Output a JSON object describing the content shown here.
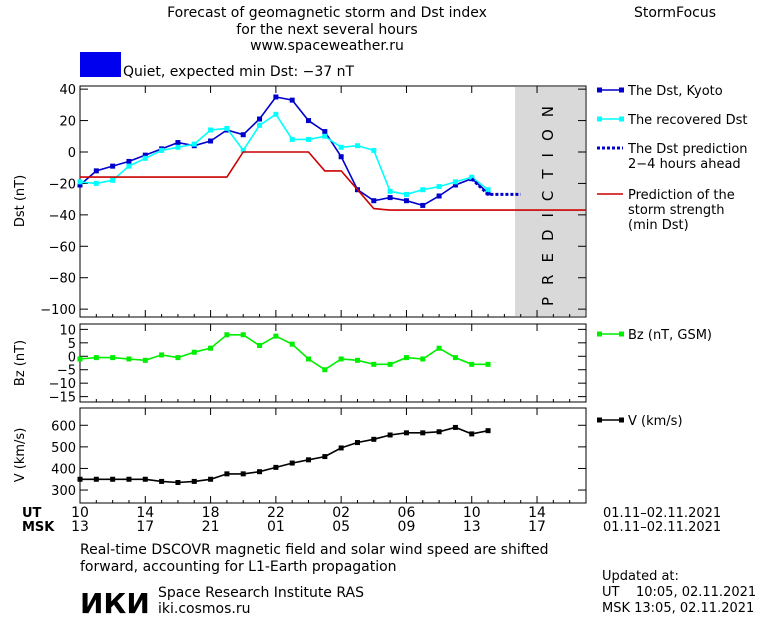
{
  "header": {
    "title_line1": "Forecast of geomagnetic storm and Dst index",
    "title_line2": "for the next several hours",
    "url": "www.spaceweather.ru",
    "brand": "StormFocus",
    "status_text": "Quiet, expected min Dst: −37 nT",
    "status_color": "#0000ee"
  },
  "labels": {
    "prediction": "PREDICTION",
    "ut": "UT",
    "msk": "MSK",
    "date_range_ut": "01.11–02.11.2021",
    "date_range_msk": "01.11–02.11.2021"
  },
  "footer": {
    "note_line1": "Real-time DSCOVR magnetic field and solar wind speed are shifted",
    "note_line2": "forward, accounting for L1-Earth propagation",
    "logo_text": "ИКИ",
    "institute": "Space Research Institute RAS",
    "site": "iki.cosmos.ru",
    "updated_title": "Updated at:",
    "updated_ut": "UT    10:05, 02.11.2021",
    "updated_msk": "MSK 13:05, 02.11.2021"
  },
  "chart_data": [
    {
      "type": "line",
      "panel": "dst",
      "ylabel": "Dst (nT)",
      "ylim": [
        -105,
        42
      ],
      "yticks": [
        40,
        20,
        0,
        -20,
        -40,
        -60,
        -80,
        -100
      ],
      "xlim": [
        10,
        41
      ],
      "prediction_region": [
        34.5,
        41
      ],
      "series": [
        {
          "name": "The Dst, Kyoto",
          "color": "#0000cc",
          "marker": "square",
          "style": "solid",
          "x": [
            10,
            11,
            12,
            13,
            14,
            15,
            16,
            17,
            18,
            19,
            20,
            21,
            22,
            23,
            24,
            25,
            26,
            27,
            28,
            29,
            30,
            31,
            32,
            33,
            34,
            35
          ],
          "y": [
            -21,
            -12,
            -9,
            -6,
            -2,
            2,
            6,
            4,
            7,
            14,
            11,
            21,
            35,
            33,
            20,
            13,
            -3,
            -24,
            -31,
            -29,
            -31,
            -34,
            -28,
            -21,
            -17,
            -26
          ]
        },
        {
          "name": "The recovered Dst",
          "color": "#00ffff",
          "marker": "square",
          "style": "solid",
          "x": [
            10,
            11,
            12,
            13,
            14,
            15,
            16,
            17,
            18,
            19,
            20,
            21,
            22,
            23,
            24,
            25,
            26,
            27,
            28,
            29,
            30,
            31,
            32,
            33,
            34,
            35
          ],
          "y": [
            -19,
            -20,
            -18,
            -9,
            -4,
            1,
            3,
            5,
            14,
            15,
            1,
            17,
            24,
            8,
            8,
            10,
            3,
            4,
            1,
            -25,
            -27,
            -24,
            -22,
            -19,
            -16,
            -24
          ]
        },
        {
          "name": "The Dst prediction 2–4 hours ahead",
          "color": "#0000cc",
          "style": "dotted",
          "x": [
            34,
            35,
            36,
            37
          ],
          "y": [
            -17,
            -27,
            -27,
            -27
          ]
        },
        {
          "name": "Prediction of the storm strength (min Dst)",
          "color": "#cc0000",
          "style": "solid",
          "x": [
            10,
            19,
            20,
            21,
            22,
            23,
            24,
            25,
            26,
            27,
            28,
            29,
            41
          ],
          "y": [
            -16,
            -16,
            0,
            0,
            0,
            0,
            0,
            -12,
            -12,
            -24,
            -36,
            -37,
            -37
          ]
        }
      ],
      "legend": [
        "The Dst, Kyoto",
        "The recovered Dst",
        "The Dst prediction",
        "2−4 hours ahead",
        "Prediction of the",
        "storm strength",
        "(min Dst)"
      ]
    },
    {
      "type": "line",
      "panel": "bz",
      "ylabel": "Bz (nT)",
      "ylim": [
        -17,
        12
      ],
      "yticks": [
        10,
        5,
        0,
        -5,
        -10,
        -15
      ],
      "series": [
        {
          "name": "Bz (nT, GSM)",
          "color": "#00ee00",
          "marker": "square",
          "x": [
            10,
            11,
            12,
            13,
            14,
            15,
            16,
            17,
            18,
            19,
            20,
            21,
            22,
            23,
            24,
            25,
            26,
            27,
            28,
            29,
            30,
            31,
            32,
            33,
            34,
            35
          ],
          "y": [
            -1,
            -0.5,
            -0.5,
            -1,
            -1.5,
            0.5,
            -0.5,
            1.5,
            3,
            8,
            8,
            4,
            7.5,
            4.5,
            -1,
            -5,
            -1,
            -1.5,
            -3,
            -3,
            -0.5,
            -1,
            3,
            -0.5,
            -3,
            -3
          ]
        }
      ]
    },
    {
      "type": "line",
      "panel": "v",
      "ylabel": "V (km/s)",
      "ylim": [
        240,
        680
      ],
      "yticks": [
        600,
        500,
        400,
        300
      ],
      "series": [
        {
          "name": "V (km/s)",
          "color": "#000000",
          "marker": "square",
          "x": [
            10,
            11,
            12,
            13,
            14,
            15,
            16,
            17,
            18,
            19,
            20,
            21,
            22,
            23,
            24,
            25,
            26,
            27,
            28,
            29,
            30,
            31,
            32,
            33,
            34,
            35
          ],
          "y": [
            350,
            350,
            350,
            350,
            350,
            340,
            335,
            340,
            350,
            375,
            375,
            385,
            405,
            425,
            440,
            455,
            495,
            520,
            535,
            555,
            565,
            565,
            570,
            590,
            560,
            575
          ]
        }
      ]
    }
  ],
  "x_axis": {
    "ticks": [
      10,
      14,
      18,
      22,
      26,
      30,
      34,
      38
    ],
    "ut_labels": [
      "10",
      "14",
      "18",
      "22",
      "02",
      "06",
      "10",
      "14"
    ],
    "msk_labels": [
      "13",
      "17",
      "21",
      "01",
      "05",
      "09",
      "13",
      "17"
    ]
  }
}
